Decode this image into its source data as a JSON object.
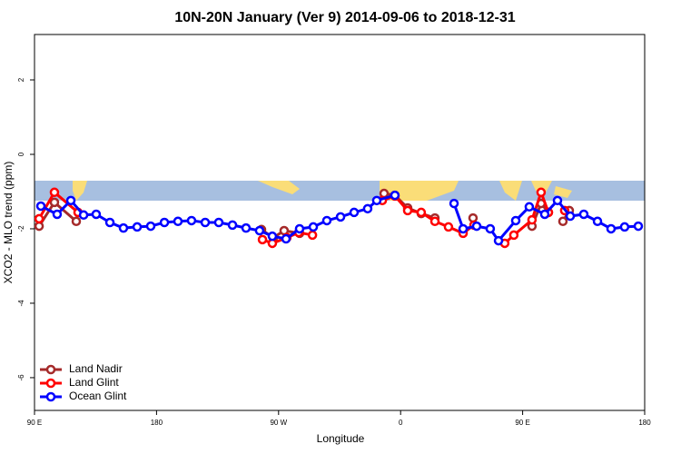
{
  "chart_data": {
    "type": "line",
    "title": "10N-20N January (Ver 9)   2014-09-06 to 2018-12-31",
    "x_label": "Longitude",
    "y_label": "XCO2 - MLO trend (ppm)",
    "xlim": [
      90,
      540
    ],
    "ylim": [
      -6.88,
      3.22
    ],
    "xticks": [
      {
        "value": 90,
        "label": "90 E"
      },
      {
        "value": 180,
        "label": "180"
      },
      {
        "value": 270,
        "label": "90 W"
      },
      {
        "value": 360,
        "label": "0"
      },
      {
        "value": 450,
        "label": "90 E"
      },
      {
        "value": 540,
        "label": "180"
      }
    ],
    "yticks": [
      -6,
      -4,
      -2,
      0,
      2
    ],
    "legend": "bottom-left",
    "series": [
      {
        "name": "Land Nadir",
        "color": "#a52a2a",
        "x": [
          93.4,
          104.7,
          120.8,
          null,
          257.4,
          266.1,
          274.1,
          285.5,
          null,
          347.8,
          355.8,
          365.2,
          375.2,
          385.3,
          null,
          413.4,
          null,
          456.9,
          463.6,
          469.0,
          null,
          479.7,
          484.4
        ],
        "values": [
          -1.93,
          -1.29,
          -1.8,
          null,
          -2.02,
          -2.24,
          -2.05,
          -2.12,
          null,
          -1.05,
          -1.1,
          -1.44,
          -1.59,
          -1.71,
          null,
          -1.71,
          null,
          -1.93,
          -1.32,
          -1.56,
          null,
          -1.8,
          -1.51
        ]
      },
      {
        "name": "Land Glint",
        "color": "#ff0000",
        "x": [
          93.4,
          104.7,
          122.1,
          null,
          258.1,
          265.4,
          276.1,
          284.9,
          295.0,
          null,
          346.5,
          355.8,
          365.2,
          375.2,
          385.3,
          395.3,
          406.1,
          414.1,
          null,
          436.8,
          443.5,
          456.9,
          463.6,
          469.0,
          null,
          481.0
        ],
        "values": [
          -1.73,
          -1.02,
          -1.56,
          null,
          -2.29,
          -2.39,
          -2.24,
          -2.1,
          -2.17,
          null,
          -1.24,
          -1.12,
          -1.51,
          -1.56,
          -1.8,
          -1.95,
          -2.12,
          -1.9,
          null,
          -2.39,
          -2.17,
          -1.76,
          -1.02,
          -1.56,
          null,
          -1.51
        ]
      },
      {
        "name": "Ocean Glint",
        "color": "#0000ff",
        "x": [
          94.7,
          106.7,
          116.8,
          126.2,
          135.5,
          145.6,
          155.6,
          165.7,
          175.7,
          185.8,
          195.8,
          205.8,
          215.9,
          225.9,
          236.0,
          246.0,
          256.0,
          265.4,
          275.5,
          285.5,
          295.6,
          305.6,
          315.7,
          325.7,
          335.7,
          342.4,
          355.8,
          null,
          399.4,
          406.1,
          416.1,
          426.1,
          432.2,
          444.9,
          454.9,
          466.3,
          475.7,
          485.1,
          495.1,
          505.2,
          515.2,
          525.2,
          535.3
        ],
        "values": [
          -1.39,
          -1.61,
          -1.24,
          -1.63,
          -1.61,
          -1.83,
          -1.98,
          -1.95,
          -1.93,
          -1.83,
          -1.8,
          -1.78,
          -1.83,
          -1.83,
          -1.9,
          -1.98,
          -2.05,
          -2.2,
          -2.27,
          -2.0,
          -1.95,
          -1.78,
          -1.68,
          -1.56,
          -1.46,
          -1.24,
          -1.1,
          null,
          -1.32,
          -2.0,
          -1.93,
          -2.0,
          -2.32,
          -1.78,
          -1.41,
          -1.61,
          -1.24,
          -1.66,
          -1.61,
          -1.8,
          -2.0,
          -1.95,
          -1.93
        ]
      }
    ]
  }
}
